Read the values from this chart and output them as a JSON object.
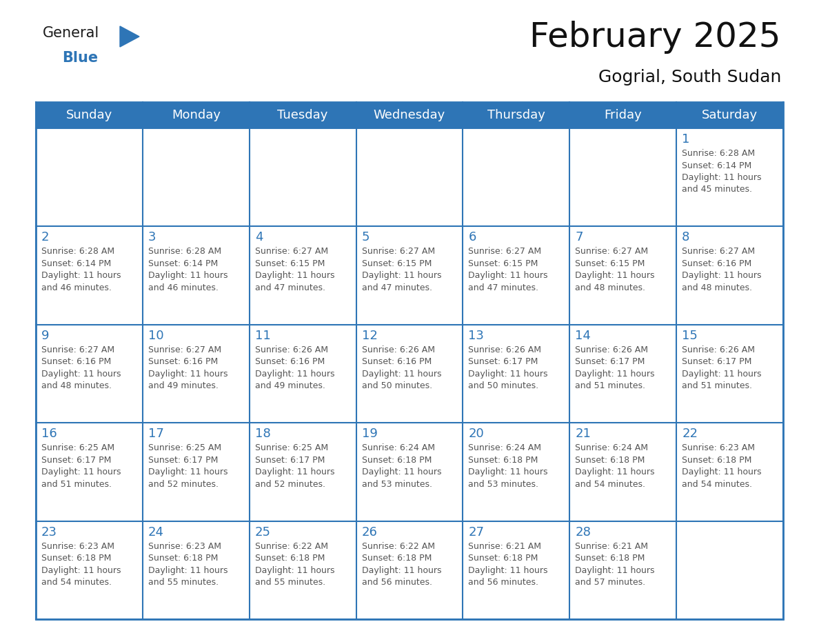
{
  "title": "February 2025",
  "subtitle": "Gogrial, South Sudan",
  "header_bg": "#2E75B6",
  "header_text_color": "#FFFFFF",
  "cell_border_color": "#2E75B6",
  "day_number_color": "#2E75B6",
  "info_text_color": "#555555",
  "bg_color": "#FFFFFF",
  "days_of_week": [
    "Sunday",
    "Monday",
    "Tuesday",
    "Wednesday",
    "Thursday",
    "Friday",
    "Saturday"
  ],
  "calendar_data": [
    [
      null,
      null,
      null,
      null,
      null,
      null,
      {
        "day": "1",
        "sunrise": "6:28 AM",
        "sunset": "6:14 PM",
        "daylight": "11 hours\nand 45 minutes."
      }
    ],
    [
      {
        "day": "2",
        "sunrise": "6:28 AM",
        "sunset": "6:14 PM",
        "daylight": "11 hours\nand 46 minutes."
      },
      {
        "day": "3",
        "sunrise": "6:28 AM",
        "sunset": "6:14 PM",
        "daylight": "11 hours\nand 46 minutes."
      },
      {
        "day": "4",
        "sunrise": "6:27 AM",
        "sunset": "6:15 PM",
        "daylight": "11 hours\nand 47 minutes."
      },
      {
        "day": "5",
        "sunrise": "6:27 AM",
        "sunset": "6:15 PM",
        "daylight": "11 hours\nand 47 minutes."
      },
      {
        "day": "6",
        "sunrise": "6:27 AM",
        "sunset": "6:15 PM",
        "daylight": "11 hours\nand 47 minutes."
      },
      {
        "day": "7",
        "sunrise": "6:27 AM",
        "sunset": "6:15 PM",
        "daylight": "11 hours\nand 48 minutes."
      },
      {
        "day": "8",
        "sunrise": "6:27 AM",
        "sunset": "6:16 PM",
        "daylight": "11 hours\nand 48 minutes."
      }
    ],
    [
      {
        "day": "9",
        "sunrise": "6:27 AM",
        "sunset": "6:16 PM",
        "daylight": "11 hours\nand 48 minutes."
      },
      {
        "day": "10",
        "sunrise": "6:27 AM",
        "sunset": "6:16 PM",
        "daylight": "11 hours\nand 49 minutes."
      },
      {
        "day": "11",
        "sunrise": "6:26 AM",
        "sunset": "6:16 PM",
        "daylight": "11 hours\nand 49 minutes."
      },
      {
        "day": "12",
        "sunrise": "6:26 AM",
        "sunset": "6:16 PM",
        "daylight": "11 hours\nand 50 minutes."
      },
      {
        "day": "13",
        "sunrise": "6:26 AM",
        "sunset": "6:17 PM",
        "daylight": "11 hours\nand 50 minutes."
      },
      {
        "day": "14",
        "sunrise": "6:26 AM",
        "sunset": "6:17 PM",
        "daylight": "11 hours\nand 51 minutes."
      },
      {
        "day": "15",
        "sunrise": "6:26 AM",
        "sunset": "6:17 PM",
        "daylight": "11 hours\nand 51 minutes."
      }
    ],
    [
      {
        "day": "16",
        "sunrise": "6:25 AM",
        "sunset": "6:17 PM",
        "daylight": "11 hours\nand 51 minutes."
      },
      {
        "day": "17",
        "sunrise": "6:25 AM",
        "sunset": "6:17 PM",
        "daylight": "11 hours\nand 52 minutes."
      },
      {
        "day": "18",
        "sunrise": "6:25 AM",
        "sunset": "6:17 PM",
        "daylight": "11 hours\nand 52 minutes."
      },
      {
        "day": "19",
        "sunrise": "6:24 AM",
        "sunset": "6:18 PM",
        "daylight": "11 hours\nand 53 minutes."
      },
      {
        "day": "20",
        "sunrise": "6:24 AM",
        "sunset": "6:18 PM",
        "daylight": "11 hours\nand 53 minutes."
      },
      {
        "day": "21",
        "sunrise": "6:24 AM",
        "sunset": "6:18 PM",
        "daylight": "11 hours\nand 54 minutes."
      },
      {
        "day": "22",
        "sunrise": "6:23 AM",
        "sunset": "6:18 PM",
        "daylight": "11 hours\nand 54 minutes."
      }
    ],
    [
      {
        "day": "23",
        "sunrise": "6:23 AM",
        "sunset": "6:18 PM",
        "daylight": "11 hours\nand 54 minutes."
      },
      {
        "day": "24",
        "sunrise": "6:23 AM",
        "sunset": "6:18 PM",
        "daylight": "11 hours\nand 55 minutes."
      },
      {
        "day": "25",
        "sunrise": "6:22 AM",
        "sunset": "6:18 PM",
        "daylight": "11 hours\nand 55 minutes."
      },
      {
        "day": "26",
        "sunrise": "6:22 AM",
        "sunset": "6:18 PM",
        "daylight": "11 hours\nand 56 minutes."
      },
      {
        "day": "27",
        "sunrise": "6:21 AM",
        "sunset": "6:18 PM",
        "daylight": "11 hours\nand 56 minutes."
      },
      {
        "day": "28",
        "sunrise": "6:21 AM",
        "sunset": "6:18 PM",
        "daylight": "11 hours\nand 57 minutes."
      },
      null
    ]
  ],
  "logo_general_color": "#1a1a1a",
  "logo_blue_color": "#2E75B6",
  "title_fontsize": 36,
  "subtitle_fontsize": 18,
  "header_fontsize": 13,
  "day_num_fontsize": 13,
  "info_fontsize": 9.0
}
